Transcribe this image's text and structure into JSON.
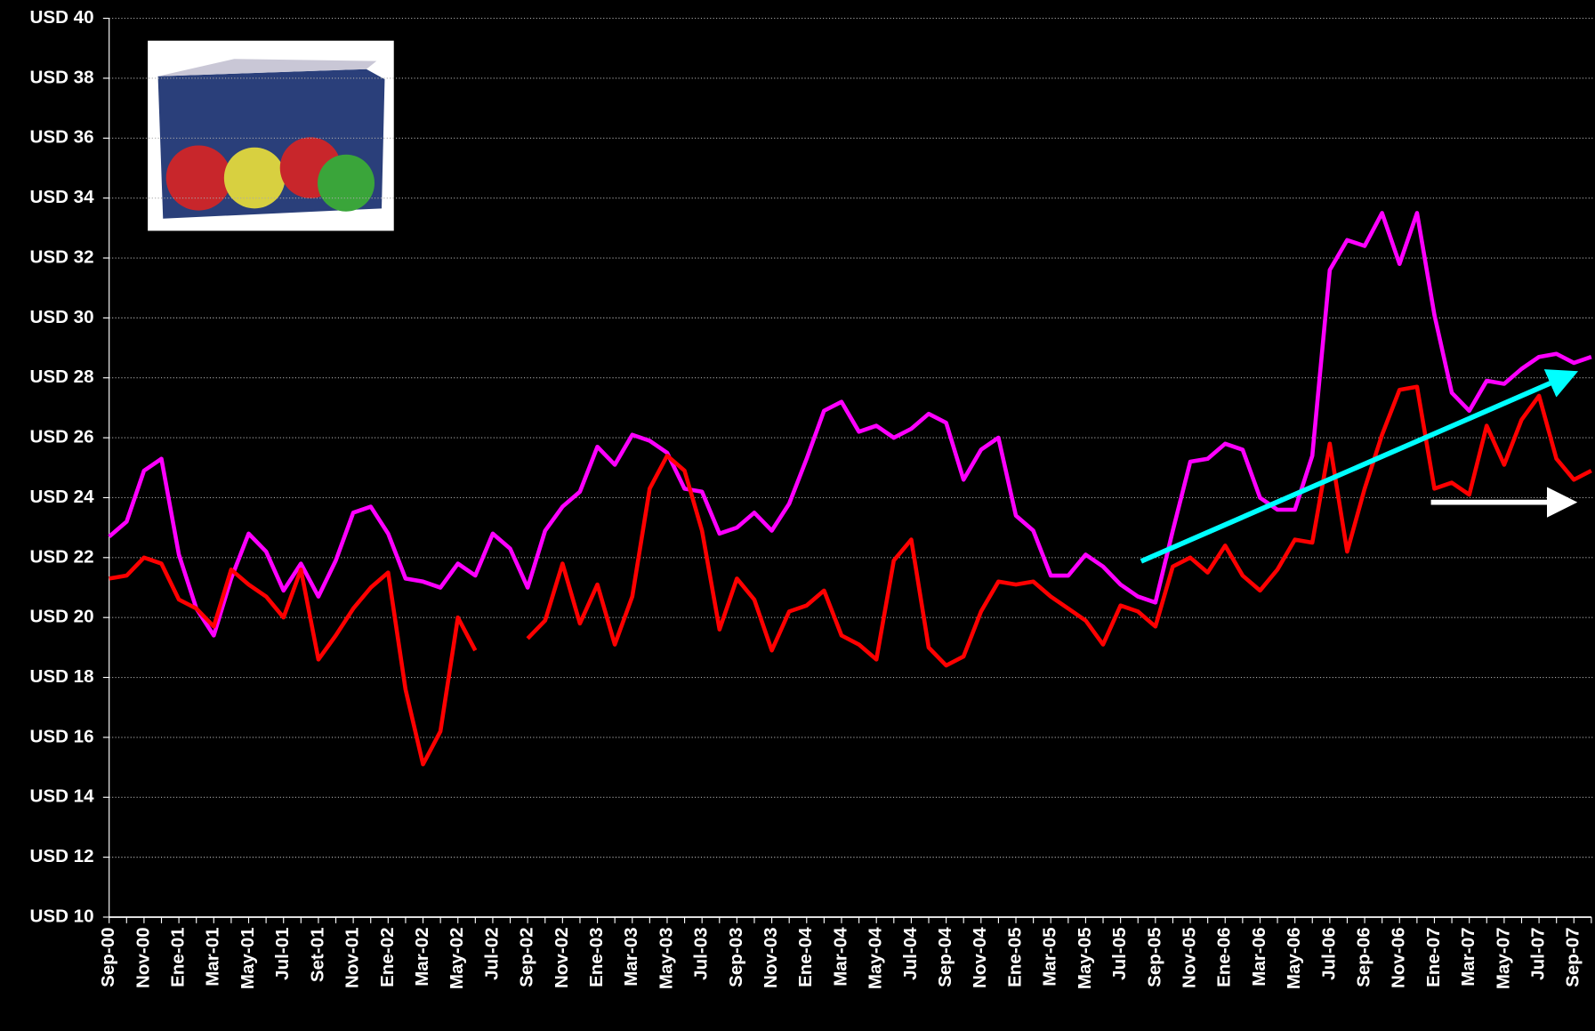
{
  "chart_data": {
    "type": "line",
    "categories": [
      "Sep-00",
      null,
      "Nov-00",
      null,
      "Ene-01",
      null,
      "Mar-01",
      null,
      "May-01",
      null,
      "Jul-01",
      null,
      "Set-01",
      null,
      "Nov-01",
      null,
      "Ene-02",
      null,
      "Mar-02",
      null,
      "May-02",
      null,
      "Jul-02",
      null,
      "Sep-02",
      null,
      "Nov-02",
      null,
      "Ene-03",
      null,
      "Mar-03",
      null,
      "May-03",
      null,
      "Jul-03",
      null,
      "Sep-03",
      null,
      "Nov-03",
      null,
      "Ene-04",
      null,
      "Mar-04",
      null,
      "May-04",
      null,
      "Jul-04",
      null,
      "Sep-04",
      null,
      "Nov-04",
      null,
      "Ene-05",
      null,
      "Mar-05",
      null,
      "May-05",
      null,
      "Jul-05",
      null,
      "Sep-05",
      null,
      "Nov-05",
      null,
      "Ene-06",
      null,
      "Mar-06",
      null,
      "May-06",
      null,
      "Jul-06",
      null,
      "Sep-06",
      null,
      "Nov-06",
      null,
      "Ene-07",
      null,
      "Mar-07",
      null,
      "May-07",
      null,
      "Jul-07",
      null,
      "Sep-07",
      null
    ],
    "series": [
      {
        "color": "#ff00ff",
        "values": [
          22.7,
          23.2,
          24.9,
          25.3,
          22.1,
          20.3,
          19.4,
          21.3,
          22.8,
          22.2,
          20.9,
          21.8,
          20.7,
          21.9,
          23.5,
          23.7,
          22.8,
          21.3,
          21.2,
          21.0,
          21.8,
          21.4,
          22.8,
          22.3,
          21.0,
          22.9,
          23.7,
          24.2,
          25.7,
          25.1,
          26.1,
          25.9,
          25.5,
          24.3,
          24.2,
          22.8,
          23.0,
          23.5,
          22.9,
          23.8,
          25.3,
          26.9,
          27.2,
          26.2,
          26.4,
          26.0,
          26.3,
          26.8,
          26.5,
          24.6,
          25.6,
          26.0,
          23.4,
          22.9,
          21.4,
          21.4,
          22.1,
          21.7,
          21.1,
          20.7,
          20.5,
          22.9,
          25.2,
          25.3,
          25.8,
          25.6,
          24.0,
          23.6,
          23.6,
          25.4,
          31.6,
          32.6,
          32.4,
          33.5,
          31.8,
          33.5,
          30.1,
          27.5,
          26.9,
          27.9,
          27.8,
          28.3,
          28.7,
          28.8,
          28.5,
          28.7
        ]
      },
      {
        "color": "#ff0000",
        "values": [
          21.3,
          21.4,
          22.0,
          21.8,
          20.6,
          20.3,
          19.7,
          21.6,
          21.1,
          20.7,
          20.0,
          21.6,
          18.6,
          19.4,
          20.3,
          21.0,
          21.5,
          17.6,
          15.1,
          16.2,
          20.0,
          18.9,
          null,
          null,
          19.3,
          19.9,
          21.8,
          19.8,
          21.1,
          19.1,
          20.7,
          24.3,
          25.4,
          24.9,
          22.9,
          19.6,
          21.3,
          20.6,
          18.9,
          20.2,
          20.4,
          20.9,
          19.4,
          19.1,
          18.6,
          21.9,
          22.6,
          19.0,
          18.4,
          18.7,
          20.2,
          21.2,
          21.1,
          21.2,
          20.7,
          20.3,
          19.9,
          19.1,
          20.4,
          20.2,
          19.7,
          21.7,
          22.0,
          21.5,
          22.4,
          21.4,
          20.9,
          21.6,
          22.6,
          22.5,
          25.8,
          22.2,
          24.3,
          26.1,
          27.6,
          27.7,
          24.3,
          24.5,
          24.1,
          26.4,
          25.1,
          26.6,
          27.4,
          25.3,
          24.6,
          24.9
        ]
      }
    ],
    "ylim": [
      10,
      40
    ],
    "yticks": [
      {
        "value": 10,
        "label": "USD 10"
      },
      {
        "value": 12,
        "label": "USD 12"
      },
      {
        "value": 14,
        "label": "USD 14"
      },
      {
        "value": 16,
        "label": "USD 16"
      },
      {
        "value": 18,
        "label": "USD 18"
      },
      {
        "value": 20,
        "label": "USD 20"
      },
      {
        "value": 22,
        "label": "USD 22"
      },
      {
        "value": 24,
        "label": "USD 24"
      },
      {
        "value": 26,
        "label": "USD 26"
      },
      {
        "value": 28,
        "label": "USD 28"
      },
      {
        "value": 30,
        "label": "USD 30"
      },
      {
        "value": 32,
        "label": "USD 32"
      },
      {
        "value": 34,
        "label": "USD 34"
      },
      {
        "value": 36,
        "label": "USD 36"
      },
      {
        "value": 38,
        "label": "USD 38"
      },
      {
        "value": 40,
        "label": "USD 40"
      }
    ],
    "grid": true
  }
}
